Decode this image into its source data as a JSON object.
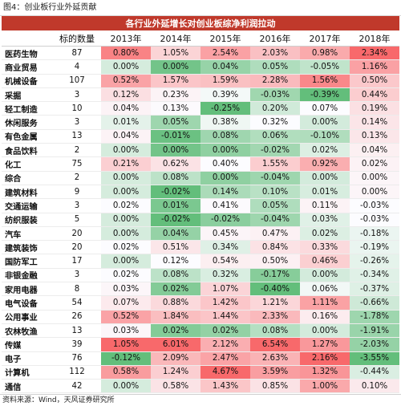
{
  "figure_title": "图4：创业板行业外延贡献",
  "table_title": "各行业外延增长对创业板综净利润拉动",
  "header": {
    "industry": "",
    "count": "标的数量",
    "years": [
      "2013年",
      "2014年",
      "2015年",
      "2016年",
      "2017年",
      "2018年"
    ]
  },
  "rows": [
    {
      "name": "医药生物",
      "count": "87",
      "values": [
        "0.80%",
        "1.05%",
        "2.54%",
        "2.03%",
        "0.98%",
        "2.34%"
      ]
    },
    {
      "name": "商业贸易",
      "count": "4",
      "values": [
        "0.00%",
        "0.00%",
        "0.04%",
        "0.05%",
        "-0.05%",
        "1.16%"
      ]
    },
    {
      "name": "机械设备",
      "count": "107",
      "values": [
        "0.52%",
        "1.57%",
        "1.59%",
        "2.28%",
        "1.56%",
        "0.50%"
      ]
    },
    {
      "name": "采掘",
      "count": "3",
      "values": [
        "0.12%",
        "0.23%",
        "0.39%",
        "-0.03%",
        "-0.39%",
        "0.44%"
      ]
    },
    {
      "name": "轻工制造",
      "count": "10",
      "values": [
        "0.04%",
        "0.13%",
        "-0.25%",
        "0.20%",
        "0.07%",
        "0.19%"
      ]
    },
    {
      "name": "休闲服务",
      "count": "3",
      "values": [
        "0.01%",
        "0.05%",
        "0.38%",
        "0.32%",
        "0.00%",
        "0.14%"
      ]
    },
    {
      "name": "有色金属",
      "count": "13",
      "values": [
        "0.04%",
        "-0.01%",
        "0.08%",
        "0.06%",
        "-0.10%",
        "0.13%"
      ]
    },
    {
      "name": "食品饮料",
      "count": "2",
      "values": [
        "0.00%",
        "0.00%",
        "0.00%",
        "-0.02%",
        "0.02%",
        "0.04%"
      ]
    },
    {
      "name": "化工",
      "count": "75",
      "values": [
        "0.21%",
        "0.62%",
        "0.40%",
        "1.55%",
        "0.92%",
        "0.02%"
      ]
    },
    {
      "name": "综合",
      "count": "2",
      "values": [
        "0.00%",
        "0.08%",
        "0.00%",
        "-0.04%",
        "0.00%",
        "0.00%"
      ]
    },
    {
      "name": "建筑材料",
      "count": "9",
      "values": [
        "0.00%",
        "-0.02%",
        "0.14%",
        "0.10%",
        "0.01%",
        "0.00%"
      ]
    },
    {
      "name": "交通运输",
      "count": "3",
      "values": [
        "0.02%",
        "0.01%",
        "0.41%",
        "0.05%",
        "0.11%",
        "-0.03%"
      ]
    },
    {
      "name": "纺织服装",
      "count": "5",
      "values": [
        "0.00%",
        "-0.02%",
        "-0.02%",
        "-0.04%",
        "0.03%",
        "-0.03%"
      ]
    },
    {
      "name": "汽车",
      "count": "20",
      "values": [
        "0.00%",
        "0.04%",
        "0.45%",
        "0.47%",
        "0.02%",
        "-0.18%"
      ]
    },
    {
      "name": "建筑装饰",
      "count": "20",
      "values": [
        "0.02%",
        "0.51%",
        "0.34%",
        "0.84%",
        "0.33%",
        "-0.19%"
      ]
    },
    {
      "name": "国防军工",
      "count": "17",
      "values": [
        "0.00%",
        "0.12%",
        "0.54%",
        "0.50%",
        "0.46%",
        "-0.26%"
      ]
    },
    {
      "name": "非银金融",
      "count": "3",
      "values": [
        "0.02%",
        "0.08%",
        "0.32%",
        "-0.17%",
        "0.00%",
        "-0.34%"
      ]
    },
    {
      "name": "家用电器",
      "count": "8",
      "values": [
        "0.03%",
        "0.02%",
        "1.07%",
        "-0.40%",
        "0.06%",
        "-0.37%"
      ]
    },
    {
      "name": "电气设备",
      "count": "54",
      "values": [
        "0.07%",
        "0.88%",
        "1.42%",
        "1.21%",
        "1.11%",
        "-0.66%"
      ]
    },
    {
      "name": "公用事业",
      "count": "26",
      "values": [
        "0.52%",
        "1.84%",
        "1.44%",
        "2.33%",
        "0.16%",
        "-1.78%"
      ]
    },
    {
      "name": "农林牧渔",
      "count": "13",
      "values": [
        "0.03%",
        "0.02%",
        "0.02%",
        "0.08%",
        "0.00%",
        "-1.91%"
      ]
    },
    {
      "name": "传媒",
      "count": "39",
      "values": [
        "1.05%",
        "6.01%",
        "2.12%",
        "6.54%",
        "1.27%",
        "-2.03%"
      ]
    },
    {
      "name": "电子",
      "count": "76",
      "values": [
        "-0.12%",
        "2.09%",
        "2.47%",
        "2.63%",
        "2.16%",
        "-3.55%"
      ]
    },
    {
      "name": "计算机",
      "count": "112",
      "values": [
        "0.58%",
        "1.24%",
        "4.67%",
        "3.59%",
        "1.32%",
        "-0.44%"
      ]
    },
    {
      "name": "通信",
      "count": "42",
      "values": [
        "0.00%",
        "0.58%",
        "1.43%",
        "0.85%",
        "1.00%",
        "0.10%"
      ]
    }
  ],
  "source": "资料来源：Wind，天风证券研究所",
  "colors": {
    "banner": "#c0392b",
    "positive_max": "#f8696b",
    "negative_max": "#63be7b",
    "neutral": "#fcfcff"
  }
}
